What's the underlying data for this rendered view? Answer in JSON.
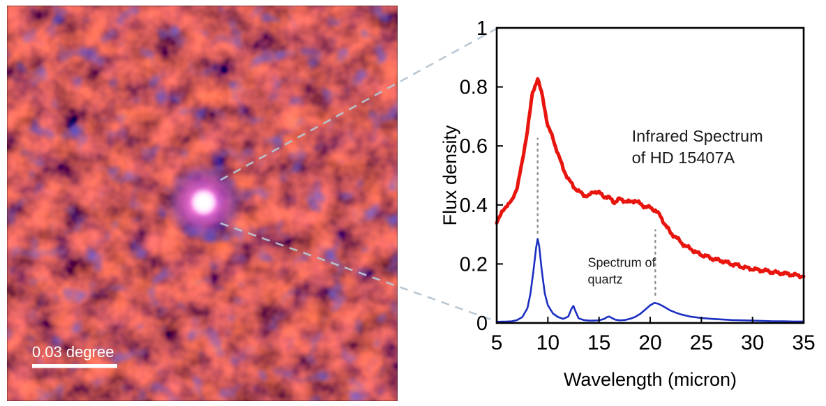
{
  "left_image": {
    "scale_bar_label": "0.03 degree",
    "content": "infrared sky image with bright point source (HD 15407A)"
  },
  "colors": {
    "callout": "#b6c5d2",
    "frame": "#000000",
    "scale_bar": "#ffffff"
  },
  "chart_data": {
    "type": "line",
    "title": "",
    "xlabel": "Wavelength (micron)",
    "ylabel": "Flux density",
    "xlim": [
      5,
      35
    ],
    "ylim": [
      0,
      1
    ],
    "xticks": [
      5,
      10,
      15,
      20,
      25,
      30,
      35
    ],
    "yticks": [
      0,
      0.2,
      0.4,
      0.6,
      0.8,
      1
    ],
    "ytick_labels": [
      "0",
      "0.2",
      "0.4",
      "0.6",
      "0.8",
      "1"
    ],
    "grid": false,
    "legend_position": "inline-annotations",
    "series": [
      {
        "name": "Infrared Spectrum of HD 15407A",
        "color": "#e8150e",
        "stroke_width": 5,
        "jitter": 0.004,
        "x": [
          5,
          5.5,
          6,
          6.5,
          7,
          7.5,
          8,
          8.5,
          9,
          9.5,
          10,
          10.5,
          11,
          11.5,
          12,
          12.5,
          13,
          13.5,
          14,
          14.5,
          15,
          15.5,
          16,
          16.5,
          17,
          17.5,
          18,
          18.5,
          19,
          19.5,
          20,
          20.5,
          21,
          21.5,
          22,
          22.5,
          23,
          23.5,
          24,
          24.5,
          25,
          25.5,
          26,
          26.5,
          27,
          27.5,
          28,
          28.5,
          29,
          29.5,
          30,
          30.5,
          31,
          31.5,
          32,
          32.5,
          33,
          33.5,
          34,
          34.5,
          35
        ],
        "y": [
          0.345,
          0.372,
          0.401,
          0.413,
          0.462,
          0.545,
          0.655,
          0.778,
          0.83,
          0.762,
          0.668,
          0.625,
          0.572,
          0.523,
          0.487,
          0.463,
          0.446,
          0.434,
          0.43,
          0.447,
          0.441,
          0.429,
          0.424,
          0.409,
          0.42,
          0.414,
          0.409,
          0.416,
          0.404,
          0.394,
          0.391,
          0.382,
          0.362,
          0.331,
          0.305,
          0.291,
          0.274,
          0.259,
          0.251,
          0.239,
          0.231,
          0.226,
          0.219,
          0.214,
          0.211,
          0.205,
          0.199,
          0.196,
          0.19,
          0.186,
          0.183,
          0.18,
          0.178,
          0.176,
          0.172,
          0.17,
          0.168,
          0.166,
          0.163,
          0.161,
          0.158
        ]
      },
      {
        "name": "Spectrum of quartz",
        "color": "#1b2fc1",
        "stroke_width": 2.6,
        "jitter": 0,
        "x": [
          5,
          6,
          6.5,
          7,
          7.5,
          8,
          8.3,
          8.6,
          8.85,
          9,
          9.15,
          9.4,
          9.7,
          10,
          10.5,
          11,
          11.5,
          12,
          12.3,
          12.5,
          12.7,
          13,
          13.5,
          14,
          14.5,
          15,
          15.5,
          15.8,
          16,
          16.3,
          16.6,
          17,
          17.5,
          18,
          18.5,
          19,
          19.5,
          20,
          20.4,
          20.8,
          21.2,
          21.6,
          22,
          22.5,
          23,
          23.5,
          24,
          25,
          26,
          27,
          28,
          29,
          30,
          31,
          32,
          33,
          34,
          35
        ],
        "y": [
          0.004,
          0.005,
          0.006,
          0.01,
          0.02,
          0.05,
          0.1,
          0.18,
          0.255,
          0.285,
          0.26,
          0.18,
          0.1,
          0.06,
          0.032,
          0.02,
          0.014,
          0.022,
          0.048,
          0.058,
          0.04,
          0.016,
          0.01,
          0.008,
          0.008,
          0.009,
          0.014,
          0.02,
          0.022,
          0.016,
          0.011,
          0.009,
          0.01,
          0.014,
          0.02,
          0.03,
          0.045,
          0.06,
          0.068,
          0.065,
          0.058,
          0.05,
          0.042,
          0.035,
          0.029,
          0.025,
          0.021,
          0.017,
          0.014,
          0.012,
          0.01,
          0.009,
          0.008,
          0.007,
          0.006,
          0.006,
          0.005,
          0.005
        ]
      }
    ],
    "annotations": [
      {
        "lines": [
          "Infrared Spectrum",
          "of HD 15407A"
        ],
        "x": 18.2,
        "y": 0.615,
        "font_size": 23.5,
        "line_height": 31,
        "color": "#1a1a1a"
      },
      {
        "lines": [
          "Spectrum of",
          "quartz"
        ],
        "x": 13.9,
        "y": 0.19,
        "font_size": 18,
        "line_height": 24,
        "color": "#1a1a1a"
      }
    ],
    "guide_lines": [
      {
        "x": 9.0,
        "y0": 0.305,
        "y1": 0.625,
        "color": "#8f8f8f"
      },
      {
        "x": 20.5,
        "y0": 0.095,
        "y1": 0.315,
        "color": "#8f8f8f"
      }
    ]
  }
}
